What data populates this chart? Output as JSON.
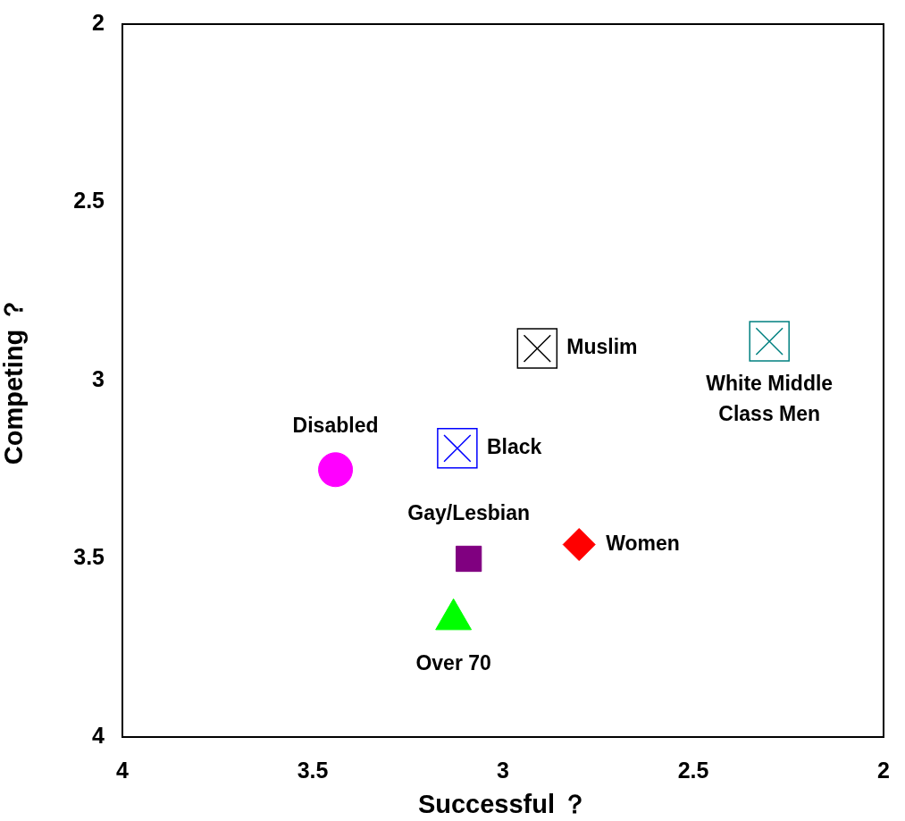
{
  "chart_data": {
    "type": "scatter",
    "xlabel": "Successful ？",
    "ylabel": "Competing ？",
    "xlim": [
      4,
      2
    ],
    "ylim": [
      4,
      2
    ],
    "xticks": [
      4,
      3.5,
      3,
      2.5,
      2
    ],
    "yticks": [
      4,
      3.5,
      3,
      2.5,
      2
    ],
    "grid": false,
    "legend": false,
    "series": [
      {
        "name": "Disabled",
        "color": "#ff00ff",
        "marker": "circle",
        "x": [
          3.44
        ],
        "values": [
          3.25
        ]
      },
      {
        "name": "Black",
        "color": "#0000ff",
        "marker": "cross",
        "x": [
          3.12
        ],
        "values": [
          3.19
        ]
      },
      {
        "name": "Muslim",
        "color": "#000000",
        "marker": "cross",
        "x": [
          2.91
        ],
        "values": [
          2.91
        ]
      },
      {
        "name": "White Middle Class Men",
        "color": "#008080",
        "marker": "cross",
        "x": [
          2.3
        ],
        "values": [
          2.89
        ]
      },
      {
        "name": "Gay/Lesbian",
        "color": "#800080",
        "marker": "square",
        "x": [
          3.09
        ],
        "values": [
          3.5
        ]
      },
      {
        "name": "Women",
        "color": "#ff0000",
        "marker": "diamond",
        "x": [
          2.8
        ],
        "values": [
          3.46
        ]
      },
      {
        "name": "Over 70",
        "color": "#00ff00",
        "marker": "triangle",
        "x": [
          3.13
        ],
        "values": [
          3.67
        ]
      }
    ]
  }
}
